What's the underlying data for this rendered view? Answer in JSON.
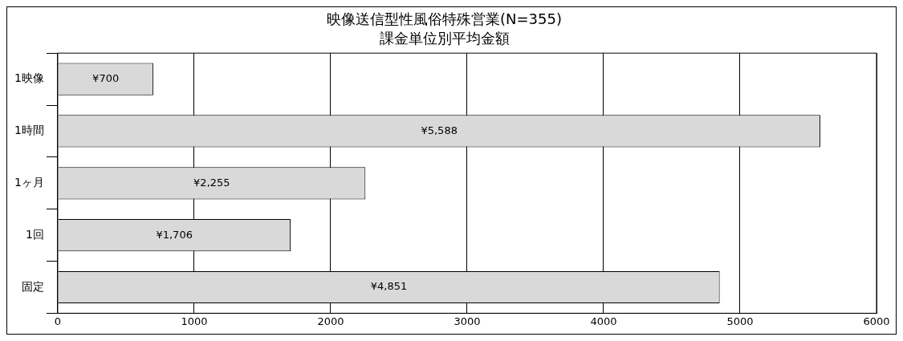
{
  "chart_data": {
    "type": "bar",
    "orientation": "horizontal",
    "title": "映像送信型性風俗特殊営業(N=355)",
    "subtitle": "課金単位別平均金額",
    "categories": [
      "1映像",
      "1時間",
      "1ヶ月",
      "1回",
      "固定"
    ],
    "values": [
      700,
      5588,
      2255,
      1706,
      4851
    ],
    "value_labels": [
      "¥700",
      "¥5,588",
      "¥2,255",
      "¥1,706",
      "¥4,851"
    ],
    "color": "#d9d9d9",
    "xlim": [
      0,
      6000
    ],
    "xticks": [
      0,
      1000,
      2000,
      3000,
      4000,
      5000,
      6000
    ],
    "grid": "x",
    "legend": false
  }
}
